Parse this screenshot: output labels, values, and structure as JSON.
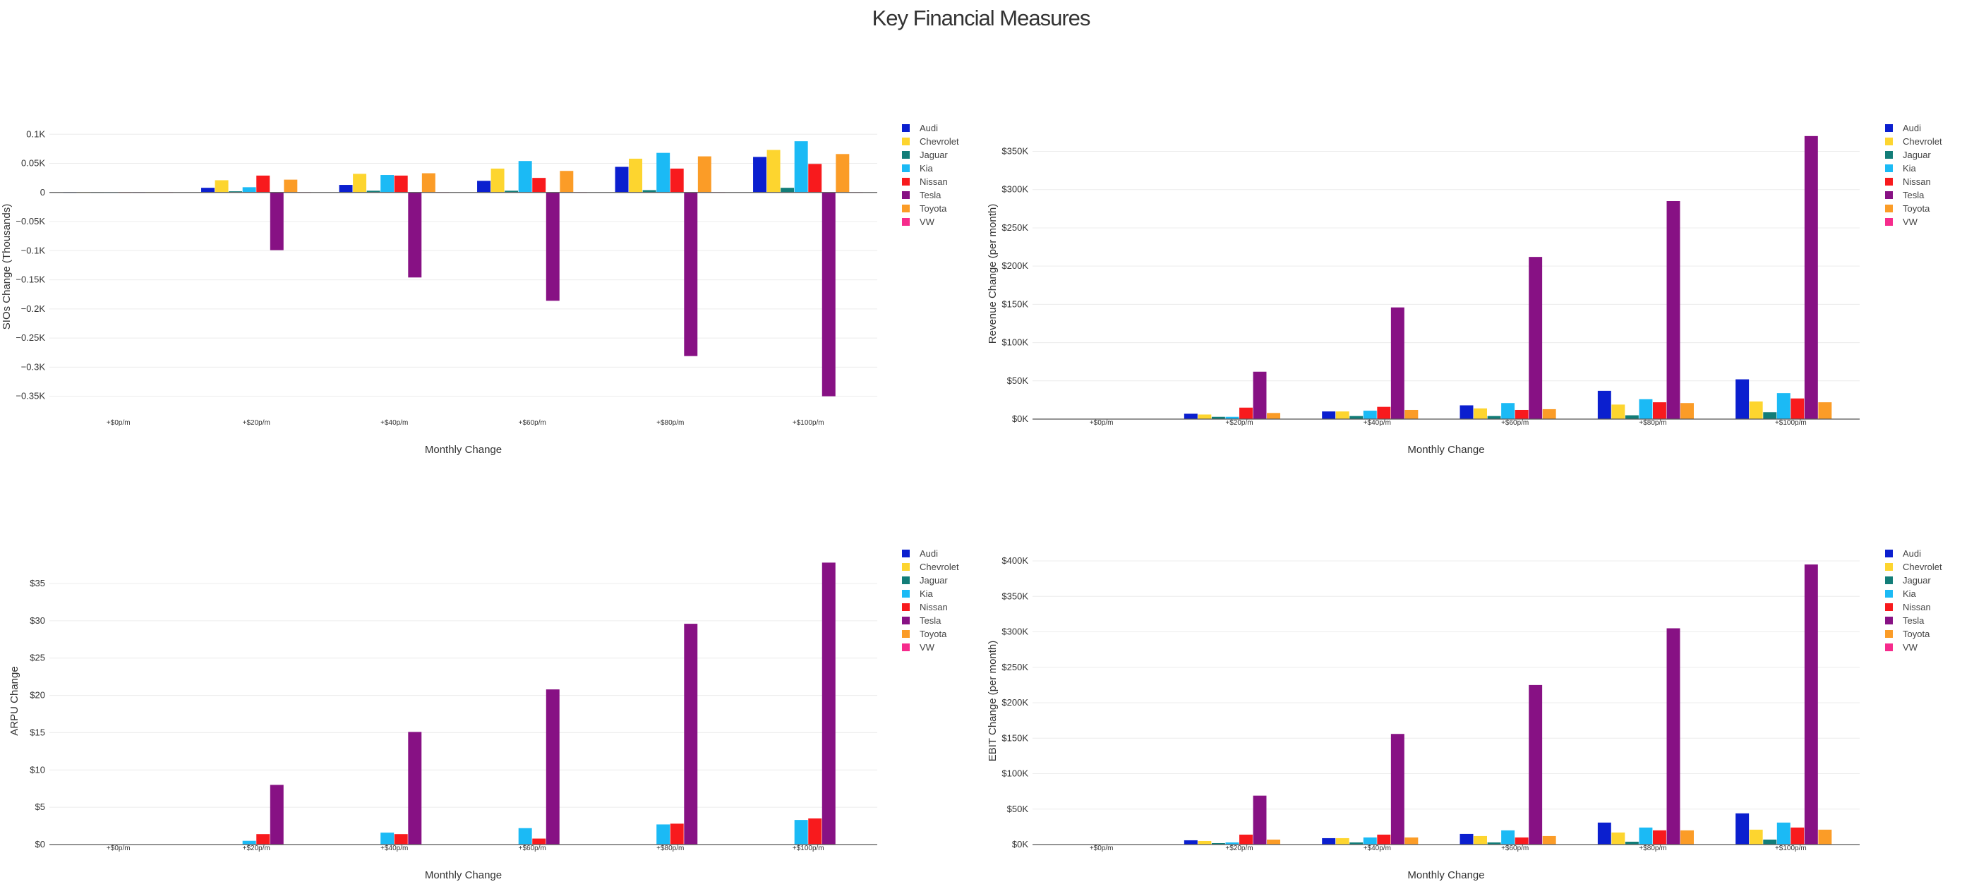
{
  "title": "Key Financial Measures",
  "colors": {
    "Audi": "#0b1fcf",
    "Chevrolet": "#fdd52f",
    "Jaguar": "#127d78",
    "Kia": "#1bbaf5",
    "Nissan": "#f81a1d",
    "Tesla": "#871184",
    "Toyota": "#fb9c27",
    "VW": "#f62b8c"
  },
  "chart_data": [
    {
      "type": "bar",
      "id": "sios",
      "xlabel": "Monthly Change",
      "ylabel": "SIOs Change (Thousands)",
      "categories": [
        "+$0p/m",
        "+$20p/m",
        "+$40p/m",
        "+$60p/m",
        "+$80p/m",
        "+$100p/m"
      ],
      "ylim": [
        -0.365,
        0.11
      ],
      "yticks": [
        0.1,
        0.05,
        0,
        -0.05,
        -0.1,
        -0.15,
        -0.2,
        -0.25,
        -0.3,
        -0.35
      ],
      "yticklabels": [
        "0.1K",
        "0.05K",
        "0",
        "−0.05K",
        "−0.1K",
        "−0.15K",
        "−0.2K",
        "−0.25K",
        "−0.3K",
        "−0.35K"
      ],
      "grid": true,
      "legend": "right",
      "series": [
        {
          "name": "Audi",
          "values": [
            0,
            0.008,
            0.013,
            0.02,
            0.044,
            0.061
          ]
        },
        {
          "name": "Chevrolet",
          "values": [
            0,
            0.021,
            0.032,
            0.041,
            0.058,
            0.073
          ]
        },
        {
          "name": "Jaguar",
          "values": [
            0,
            0.002,
            0.003,
            0.003,
            0.004,
            0.008
          ]
        },
        {
          "name": "Kia",
          "values": [
            0,
            0.009,
            0.03,
            0.054,
            0.068,
            0.088
          ]
        },
        {
          "name": "Nissan",
          "values": [
            0,
            0.029,
            0.029,
            0.025,
            0.041,
            0.049
          ]
        },
        {
          "name": "Tesla",
          "values": [
            0,
            -0.099,
            -0.146,
            -0.186,
            -0.281,
            -0.35
          ]
        },
        {
          "name": "Toyota",
          "values": [
            0,
            0.022,
            0.033,
            0.037,
            0.062,
            0.066
          ]
        },
        {
          "name": "VW",
          "values": [
            0,
            0,
            0,
            0,
            0,
            0
          ]
        }
      ]
    },
    {
      "type": "bar",
      "id": "revenue",
      "xlabel": "Monthly Change",
      "ylabel": "Revenue Change (per month)",
      "categories": [
        "+$0p/m",
        "+$20p/m",
        "+$40p/m",
        "+$60p/m",
        "+$80p/m",
        "+$100p/m"
      ],
      "ylim": [
        0,
        380000
      ],
      "yticks": [
        0,
        50000,
        100000,
        150000,
        200000,
        250000,
        300000,
        350000
      ],
      "yticklabels": [
        "$0K",
        "$50K",
        "$100K",
        "$150K",
        "$200K",
        "$250K",
        "$300K",
        "$350K"
      ],
      "grid": true,
      "legend": "right",
      "series": [
        {
          "name": "Audi",
          "values": [
            0,
            7000,
            10000,
            18000,
            37000,
            52000
          ]
        },
        {
          "name": "Chevrolet",
          "values": [
            0,
            6000,
            10000,
            14000,
            19000,
            23000
          ]
        },
        {
          "name": "Jaguar",
          "values": [
            0,
            3000,
            4000,
            4000,
            5000,
            9000
          ]
        },
        {
          "name": "Kia",
          "values": [
            0,
            3000,
            11000,
            21000,
            26000,
            34000
          ]
        },
        {
          "name": "Nissan",
          "values": [
            0,
            15000,
            16000,
            12000,
            22000,
            27000
          ]
        },
        {
          "name": "Tesla",
          "values": [
            0,
            62000,
            146000,
            212000,
            285000,
            370000
          ]
        },
        {
          "name": "Toyota",
          "values": [
            0,
            8000,
            12000,
            13000,
            21000,
            22000
          ]
        },
        {
          "name": "VW",
          "values": [
            0,
            0,
            0,
            0,
            0,
            0
          ]
        }
      ]
    },
    {
      "type": "bar",
      "id": "arpu",
      "xlabel": "Monthly Change",
      "ylabel": "ARPU Change",
      "categories": [
        "+$0p/m",
        "+$20p/m",
        "+$40p/m",
        "+$60p/m",
        "+$80p/m",
        "+$100p/m"
      ],
      "ylim": [
        0,
        38.5
      ],
      "yticks": [
        0,
        5,
        10,
        15,
        20,
        25,
        30,
        35
      ],
      "yticklabels": [
        "$0",
        "$5",
        "$10",
        "$15",
        "$20",
        "$25",
        "$30",
        "$35"
      ],
      "grid": true,
      "legend": "right",
      "series": [
        {
          "name": "Audi",
          "values": [
            0,
            0,
            0,
            0,
            0,
            0
          ]
        },
        {
          "name": "Chevrolet",
          "values": [
            0,
            0,
            0,
            0,
            0,
            0
          ]
        },
        {
          "name": "Jaguar",
          "values": [
            0,
            0,
            0,
            0,
            0,
            0
          ]
        },
        {
          "name": "Kia",
          "values": [
            0,
            0.5,
            1.6,
            2.2,
            2.7,
            3.3
          ]
        },
        {
          "name": "Nissan",
          "values": [
            0,
            1.4,
            1.4,
            0.8,
            2.8,
            3.5
          ]
        },
        {
          "name": "Tesla",
          "values": [
            0,
            8.0,
            15.1,
            20.8,
            29.6,
            37.8
          ]
        },
        {
          "name": "Toyota",
          "values": [
            0,
            0,
            0,
            0,
            0,
            0
          ]
        },
        {
          "name": "VW",
          "values": [
            0,
            0,
            0,
            0,
            0,
            0
          ]
        }
      ]
    },
    {
      "type": "bar",
      "id": "ebit",
      "xlabel": "Monthly Change",
      "ylabel": "EBIT Change (per month)",
      "categories": [
        "+$0p/m",
        "+$20p/m",
        "+$40p/m",
        "+$60p/m",
        "+$80p/m",
        "+$100p/m"
      ],
      "ylim": [
        0,
        405000
      ],
      "yticks": [
        0,
        50000,
        100000,
        150000,
        200000,
        250000,
        300000,
        350000,
        400000
      ],
      "yticklabels": [
        "$0K",
        "$50K",
        "$100K",
        "$150K",
        "$200K",
        "$250K",
        "$300K",
        "$350K",
        "$400K"
      ],
      "grid": true,
      "legend": "right",
      "series": [
        {
          "name": "Audi",
          "values": [
            0,
            6000,
            9000,
            15000,
            31000,
            44000
          ]
        },
        {
          "name": "Chevrolet",
          "values": [
            0,
            5000,
            9000,
            12000,
            17000,
            21000
          ]
        },
        {
          "name": "Jaguar",
          "values": [
            0,
            2000,
            3000,
            3000,
            4000,
            7000
          ]
        },
        {
          "name": "Kia",
          "values": [
            0,
            3000,
            10000,
            20000,
            24000,
            31000
          ]
        },
        {
          "name": "Nissan",
          "values": [
            0,
            14000,
            14000,
            10000,
            20000,
            24000
          ]
        },
        {
          "name": "Tesla",
          "values": [
            0,
            69000,
            156000,
            225000,
            305000,
            395000
          ]
        },
        {
          "name": "Toyota",
          "values": [
            0,
            7000,
            10000,
            12000,
            20000,
            21000
          ]
        },
        {
          "name": "VW",
          "values": [
            0,
            0,
            0,
            0,
            0,
            0
          ]
        }
      ]
    }
  ]
}
